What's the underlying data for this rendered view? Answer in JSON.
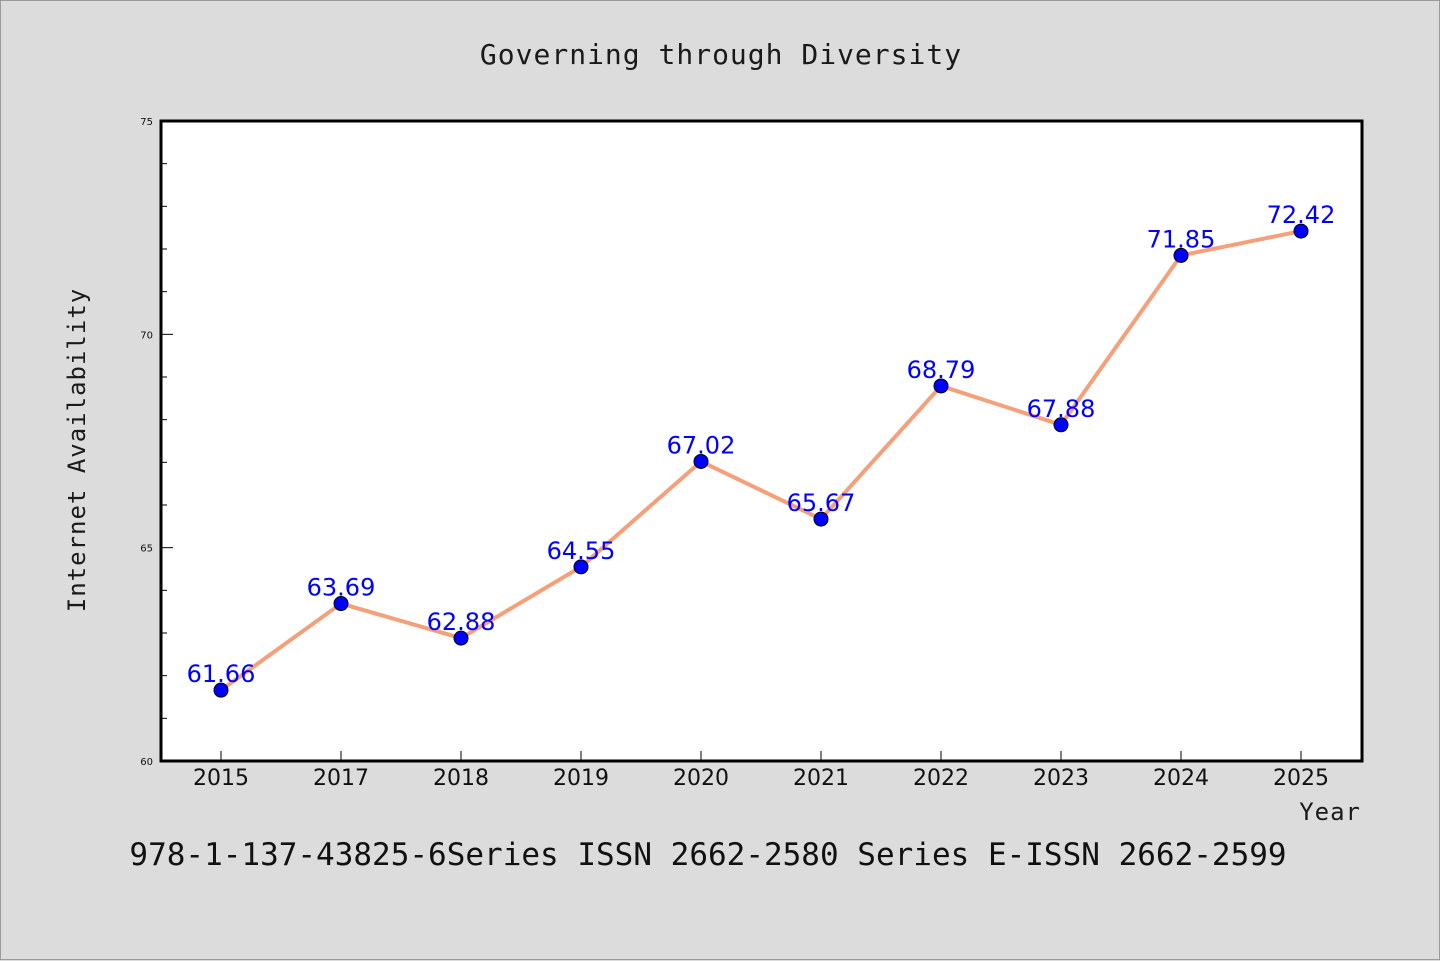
{
  "chart_data": {
    "type": "line",
    "title": "Governing through Diversity",
    "xlabel": "Year",
    "ylabel": "Internet Availability",
    "categories": [
      "2015",
      "2017",
      "2018",
      "2019",
      "2020",
      "2021",
      "2022",
      "2023",
      "2024",
      "2025"
    ],
    "series": [
      {
        "values": [
          61.66,
          63.69,
          62.88,
          64.55,
          67.02,
          65.67,
          68.79,
          67.88,
          71.85,
          72.42
        ],
        "line_color": "#f4a07a",
        "marker_color": "#0000ff",
        "label_color": "#0000ff"
      }
    ],
    "ylim": [
      60,
      75
    ],
    "yticks": [
      "60",
      "65",
      "70",
      "75"
    ],
    "grid": false,
    "legend": "none"
  },
  "footer": {
    "text": "978-1-137-43825-6Series ISSN 2662-2580 Series E-ISSN 2662-2599"
  }
}
